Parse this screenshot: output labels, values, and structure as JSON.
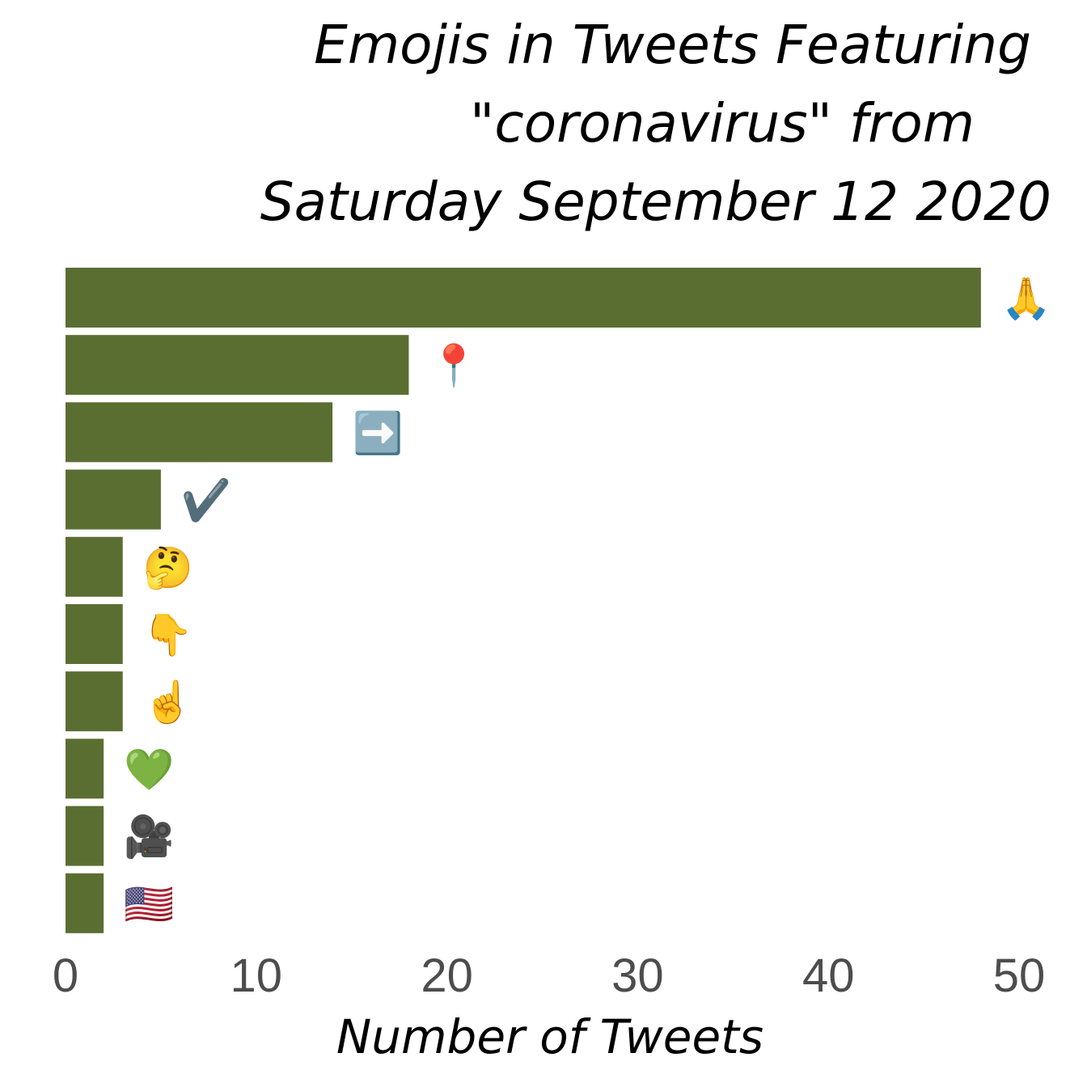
{
  "chart_data": {
    "type": "bar",
    "orientation": "horizontal",
    "title_lines": [
      "Emojis in Tweets Featuring",
      "\"coronavirus\" from",
      "Saturday September 12 2020"
    ],
    "xlabel": "Number of Tweets",
    "ylabel": "",
    "xlim": [
      0,
      50
    ],
    "x_ticks": [
      0,
      10,
      20,
      30,
      40,
      50
    ],
    "grid": false,
    "bar_color": "#5a6e32",
    "categories": [
      "🙏",
      "📍",
      "➡️",
      "✔️",
      "🤔",
      "👇",
      "☝️",
      "💚",
      "🎥",
      "🇺🇸"
    ],
    "values": [
      48,
      18,
      14,
      5,
      3,
      3,
      3,
      2,
      2,
      2
    ]
  }
}
